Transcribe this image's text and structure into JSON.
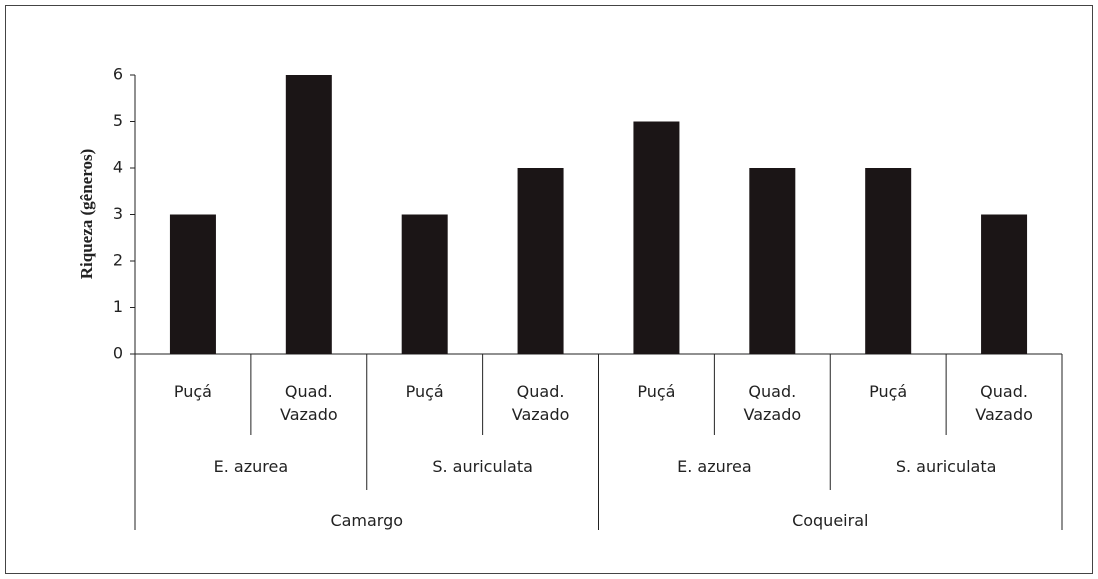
{
  "chart_data": {
    "type": "bar",
    "y_label": "Riqueza (gêneros)",
    "categories": [
      "Puçá",
      "Quad. Vazado",
      "Puçá",
      "Quad. Vazado",
      "Puçá",
      "Quad. Vazado",
      "Puçá",
      "Quad. Vazado"
    ],
    "category_groups": [
      [
        "E. azurea",
        "S. auriculata",
        "E. azurea",
        "S. auriculata"
      ],
      [
        "Camargo",
        "Coqueiral"
      ]
    ],
    "values": [
      3,
      6,
      3,
      4,
      5,
      4,
      4,
      3
    ],
    "color": "#1b1516",
    "ylim": [
      0,
      6
    ],
    "yticks": [
      0,
      1,
      2,
      3,
      4,
      5,
      6
    ],
    "grid": false
  }
}
